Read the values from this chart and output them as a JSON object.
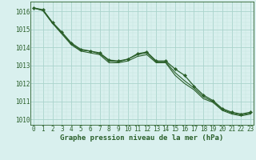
{
  "title": "Graphe pression niveau de la mer (hPa)",
  "hours": [
    0,
    1,
    2,
    3,
    4,
    5,
    6,
    7,
    8,
    9,
    10,
    11,
    12,
    13,
    14,
    15,
    16,
    17,
    18,
    19,
    20,
    21,
    22,
    23
  ],
  "line1": [
    1016.2,
    1016.05,
    1015.35,
    1014.8,
    1014.2,
    1013.85,
    1013.8,
    1013.65,
    1013.25,
    1013.2,
    1013.35,
    1013.6,
    1013.7,
    1013.2,
    1013.2,
    1012.6,
    1012.15,
    1011.75,
    1011.25,
    1011.0,
    1010.55,
    1010.35,
    1010.25,
    1010.35
  ],
  "line2": [
    1016.2,
    1016.05,
    1015.35,
    1014.75,
    1014.15,
    1013.8,
    1013.7,
    1013.6,
    1013.15,
    1013.15,
    1013.25,
    1013.5,
    1013.6,
    1013.15,
    1013.15,
    1012.45,
    1012.0,
    1011.65,
    1011.15,
    1010.95,
    1010.5,
    1010.3,
    1010.2,
    1010.3
  ],
  "line3_main": [
    1016.2,
    1016.1,
    1015.4,
    1014.85,
    1014.25,
    1013.9,
    1013.8,
    1013.7,
    1013.3,
    1013.25,
    1013.35,
    1013.65,
    1013.75,
    1013.25,
    1013.25,
    1012.8,
    1012.45,
    1011.85,
    1011.35,
    1011.05,
    1010.6,
    1010.4,
    1010.3,
    1010.4
  ],
  "bg_color": "#d9f0ee",
  "grid_major_color": "#aad4cc",
  "grid_minor_color": "#c2e4de",
  "line_color": "#2a5f2a",
  "ylim": [
    1009.7,
    1016.55
  ],
  "yticks": [
    1010,
    1011,
    1012,
    1013,
    1014,
    1015,
    1016
  ],
  "xlim": [
    -0.3,
    23.3
  ],
  "tick_fontsize": 5.5,
  "title_fontsize": 6.5
}
